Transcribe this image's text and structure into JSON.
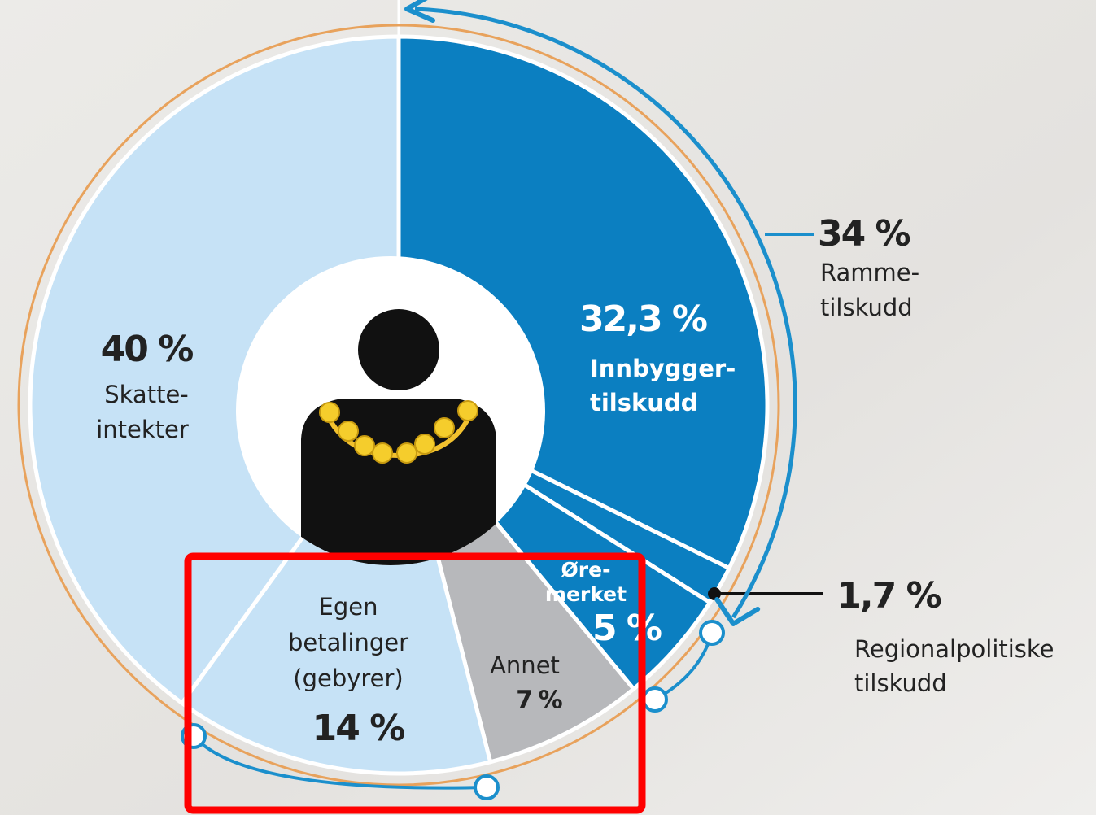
{
  "chart_data": {
    "type": "pie",
    "categories": [
      [
        "Innbygger-",
        "tilskudd"
      ],
      [
        "Regionalpolitiske",
        "tilskudd"
      ],
      [
        "Øre-",
        "merket"
      ],
      [
        "Annet"
      ],
      [
        "Egen",
        "betalinger",
        "(gebyrer)"
      ],
      [
        "Skatte-",
        "intekter"
      ]
    ],
    "values": [
      32.3,
      1.7,
      5,
      7,
      14,
      40
    ],
    "value_labels": [
      "32,3 %",
      "1,7 %",
      "5 %",
      "7 %",
      "14 %",
      "40 %"
    ],
    "colors": [
      "#0b7fc1",
      "#0b7fc1",
      "#0b7fc1",
      "#b7b8bb",
      "#c6e2f6",
      "#c6e2f6"
    ],
    "annotations": [
      {
        "value": 34,
        "value_label": "34 %",
        "text": [
          "Ramme-",
          "tilskudd"
        ]
      }
    ]
  }
}
